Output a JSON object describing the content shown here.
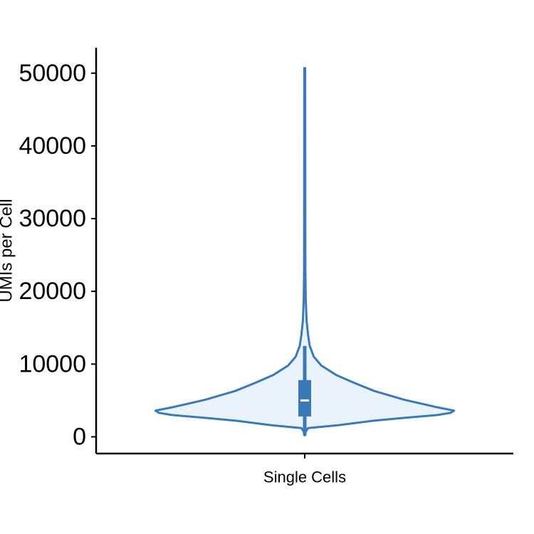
{
  "chart_data": {
    "type": "violin",
    "title": "",
    "xlabel": "",
    "ylabel": "UMIs per Cell",
    "categories": [
      "Single Cells"
    ],
    "yticks": [
      0,
      10000,
      20000,
      30000,
      40000,
      50000
    ],
    "ytick_labels": [
      "0",
      "10000",
      "20000",
      "30000",
      "40000",
      "50000"
    ],
    "ylim": [
      -2300,
      53500
    ],
    "grid": false,
    "violin": {
      "min": 200,
      "max": 50700,
      "q1": 2800,
      "median": 5000,
      "q3": 7800,
      "whisker_low": 200,
      "whisker_high": 12500,
      "density_profile": [
        [
          200,
          0.0
        ],
        [
          700,
          0.006
        ],
        [
          1200,
          0.02
        ],
        [
          1600,
          0.2
        ],
        [
          2200,
          0.41
        ],
        [
          2600,
          0.6
        ],
        [
          3000,
          0.8
        ],
        [
          3300,
          0.88
        ],
        [
          3600,
          0.9
        ],
        [
          4100,
          0.79
        ],
        [
          5100,
          0.6
        ],
        [
          6300,
          0.42
        ],
        [
          7400,
          0.3
        ],
        [
          8500,
          0.19
        ],
        [
          9800,
          0.1
        ],
        [
          11000,
          0.055
        ],
        [
          12500,
          0.03
        ],
        [
          14000,
          0.02
        ],
        [
          16000,
          0.011
        ],
        [
          19000,
          0.006
        ],
        [
          23000,
          0.004
        ],
        [
          30000,
          0.0035
        ],
        [
          40000,
          0.003
        ],
        [
          50700,
          0.0025
        ]
      ]
    },
    "colors": {
      "line": "#3a7ab8",
      "fill": "#eaf3fc",
      "median": "#ffffff",
      "axis": "#000000"
    }
  }
}
